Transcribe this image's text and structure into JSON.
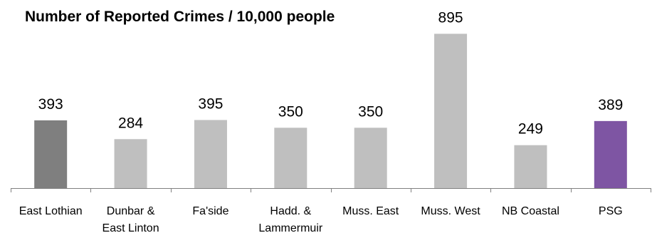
{
  "chart_data": {
    "type": "bar",
    "title": "Number of Reported Crimes / 10,000 people",
    "categories": [
      "East Lothian",
      "Dunbar & East Linton",
      "Fa'side",
      "Hadd. & Lammermuir",
      "Muss. East",
      "Muss. West",
      "NB Coastal",
      "PSG"
    ],
    "category_lines": [
      [
        "East Lothian"
      ],
      [
        "Dunbar &",
        "East Linton"
      ],
      [
        "Fa'side"
      ],
      [
        "Hadd. &",
        "Lammermuir"
      ],
      [
        "Muss. East"
      ],
      [
        "Muss. West"
      ],
      [
        "NB Coastal"
      ],
      [
        "PSG"
      ]
    ],
    "values": [
      393,
      284,
      395,
      350,
      350,
      895,
      249,
      389
    ],
    "value_labels": [
      "393",
      "284",
      "395",
      "350",
      "350",
      "895",
      "249",
      "389"
    ],
    "bar_colors": [
      "#7f7f7f",
      "#bfbfbf",
      "#bfbfbf",
      "#bfbfbf",
      "#bfbfbf",
      "#bfbfbf",
      "#bfbfbf",
      "#7e55a3"
    ],
    "ylim": [
      0,
      1000
    ],
    "grid": false,
    "legend": "none",
    "xlabel": "",
    "ylabel": ""
  }
}
